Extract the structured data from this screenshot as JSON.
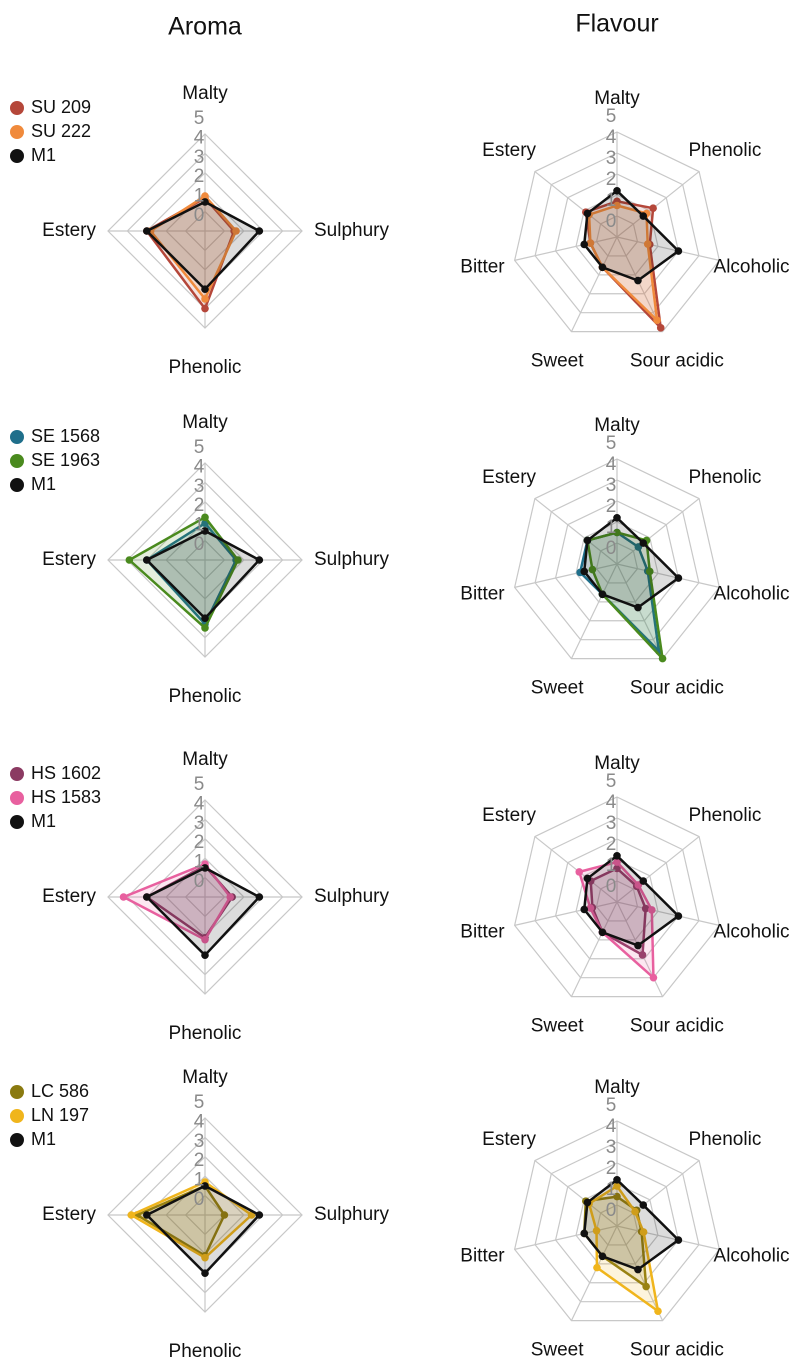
{
  "headings": {
    "aroma": "Aroma",
    "flavour": "Flavour"
  },
  "chart_data": [
    {
      "type": "radar",
      "axes": [
        "Malty",
        "Sulphury",
        "Phenolic",
        "Estery"
      ],
      "rlim": [
        0,
        5
      ],
      "rticks": [
        0,
        1,
        2,
        3,
        4,
        5
      ],
      "legend": "upper left",
      "series": [
        {
          "name": "SU 209",
          "color": "#b5473a",
          "values": [
            1.7,
            1.5,
            4.0,
            3.0
          ]
        },
        {
          "name": "SU 222",
          "color": "#f08a3c",
          "values": [
            1.8,
            1.6,
            3.5,
            2.8
          ]
        },
        {
          "name": "M1",
          "color": "#111111",
          "values": [
            1.5,
            2.8,
            3.0,
            3.0
          ]
        }
      ]
    },
    {
      "type": "radar",
      "axes": [
        "Malty",
        "Phenolic",
        "Alcoholic",
        "Sour acidic",
        "Sweet",
        "Bitter",
        "Estery"
      ],
      "rlim": [
        0,
        5
      ],
      "rticks": [
        0,
        1,
        2,
        3,
        4,
        5
      ],
      "series": [
        {
          "color": "#b5473a",
          "values": [
            1.7,
            2.2,
            1.6,
            4.8,
            1.6,
            1.3,
            1.9
          ]
        },
        {
          "color": "#f08a3c",
          "values": [
            1.5,
            1.8,
            1.5,
            4.4,
            1.6,
            1.3,
            1.7
          ]
        },
        {
          "color": "#111111",
          "values": [
            2.2,
            1.6,
            3.0,
            2.3,
            1.6,
            1.6,
            1.8
          ]
        }
      ]
    },
    {
      "type": "radar",
      "axes": [
        "Malty",
        "Sulphury",
        "Phenolic",
        "Estery"
      ],
      "rlim": [
        0,
        5
      ],
      "rticks": [
        0,
        1,
        2,
        3,
        4,
        5
      ],
      "legend": "upper left",
      "series": [
        {
          "name": "SE 1568",
          "color": "#1f6f8b",
          "values": [
            1.9,
            1.6,
            3.3,
            3.0
          ]
        },
        {
          "name": "SE 1963",
          "color": "#4a8a1e",
          "values": [
            2.2,
            1.7,
            3.5,
            3.9
          ]
        },
        {
          "name": "M1",
          "color": "#111111",
          "values": [
            1.5,
            2.8,
            3.0,
            3.0
          ]
        }
      ]
    },
    {
      "type": "radar",
      "axes": [
        "Malty",
        "Phenolic",
        "Alcoholic",
        "Sour acidic",
        "Sweet",
        "Bitter",
        "Estery"
      ],
      "rlim": [
        0,
        5
      ],
      "rticks": [
        0,
        1,
        2,
        3,
        4,
        5
      ],
      "series": [
        {
          "color": "#1f6f8b",
          "values": [
            1.5,
            1.3,
            1.5,
            4.6,
            1.6,
            1.8,
            1.8
          ]
        },
        {
          "color": "#4a8a1e",
          "values": [
            1.5,
            1.8,
            1.6,
            5.0,
            1.6,
            1.2,
            1.8
          ]
        },
        {
          "color": "#111111",
          "values": [
            2.2,
            1.6,
            3.0,
            2.3,
            1.6,
            1.6,
            1.8
          ]
        }
      ]
    },
    {
      "type": "radar",
      "axes": [
        "Malty",
        "Sulphury",
        "Phenolic",
        "Estery"
      ],
      "rlim": [
        0,
        5
      ],
      "rticks": [
        0,
        1,
        2,
        3,
        4,
        5
      ],
      "legend": "upper left",
      "series": [
        {
          "name": "HS 1602",
          "color": "#8b3a62",
          "values": [
            1.6,
            1.4,
            2.1,
            3.0
          ]
        },
        {
          "name": "HS 1583",
          "color": "#e8609f",
          "values": [
            1.7,
            1.3,
            2.2,
            4.2
          ]
        },
        {
          "name": "M1",
          "color": "#111111",
          "values": [
            1.5,
            2.8,
            3.0,
            3.0
          ]
        }
      ]
    },
    {
      "type": "radar",
      "axes": [
        "Malty",
        "Phenolic",
        "Alcoholic",
        "Sour acidic",
        "Sweet",
        "Bitter",
        "Estery"
      ],
      "rlim": [
        0,
        5
      ],
      "rticks": [
        0,
        1,
        2,
        3,
        4,
        5
      ],
      "series": [
        {
          "color": "#8b3a62",
          "values": [
            1.6,
            1.2,
            1.4,
            2.8,
            1.6,
            1.2,
            1.6
          ]
        },
        {
          "color": "#e8609f",
          "values": [
            1.9,
            1.3,
            1.7,
            4.0,
            1.6,
            1.3,
            2.3
          ]
        },
        {
          "color": "#111111",
          "values": [
            2.2,
            1.6,
            3.0,
            2.3,
            1.6,
            1.6,
            1.8
          ]
        }
      ]
    },
    {
      "type": "radar",
      "axes": [
        "Malty",
        "Sulphury",
        "Phenolic",
        "Estery"
      ],
      "rlim": [
        0,
        5
      ],
      "rticks": [
        0,
        1,
        2,
        3,
        4,
        5
      ],
      "legend": "upper left",
      "series": [
        {
          "name": "LC 586",
          "color": "#8a7a10",
          "values": [
            1.5,
            1.0,
            2.1,
            3.5
          ]
        },
        {
          "name": "LN 197",
          "color": "#f0b51c",
          "values": [
            1.7,
            2.4,
            2.2,
            3.8
          ]
        },
        {
          "name": "M1",
          "color": "#111111",
          "values": [
            1.5,
            2.8,
            3.0,
            3.0
          ]
        }
      ]
    },
    {
      "type": "radar",
      "axes": [
        "Malty",
        "Phenolic",
        "Alcoholic",
        "Sour acidic",
        "Sweet",
        "Bitter",
        "Estery"
      ],
      "rlim": [
        0,
        5
      ],
      "rticks": [
        0,
        1,
        2,
        3,
        4,
        5
      ],
      "series": [
        {
          "color": "#8a7a10",
          "values": [
            1.4,
            1.2,
            1.2,
            3.2,
            1.6,
            1.6,
            1.9
          ]
        },
        {
          "color": "#f0b51c",
          "values": [
            1.9,
            1.1,
            1.3,
            4.5,
            2.2,
            1.0,
            1.7
          ]
        },
        {
          "color": "#111111",
          "values": [
            2.2,
            1.6,
            3.0,
            2.3,
            1.6,
            1.6,
            1.8
          ]
        }
      ]
    }
  ]
}
